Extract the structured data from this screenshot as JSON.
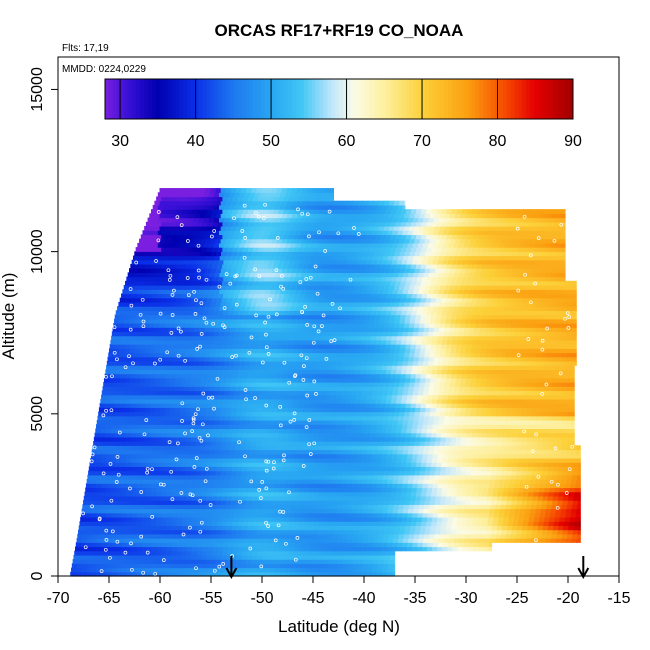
{
  "chart_data": {
    "type": "heatmap",
    "title": "ORCAS RF17+RF19 CO_NOAA",
    "subtitle_lines": [
      "Flts: 17,19",
      "MMDD: 0224,0229"
    ],
    "xlabel": "Latitude (deg N)",
    "ylabel": "Altitude (m)",
    "xlim": [
      -70,
      -15
    ],
    "ylim": [
      0,
      16000
    ],
    "x_ticks": [
      -70,
      -65,
      -60,
      -55,
      -50,
      -45,
      -40,
      -35,
      -30,
      -25,
      -20,
      -15
    ],
    "y_ticks": [
      0,
      5000,
      10000,
      15000
    ],
    "colorbar": {
      "min": 28,
      "max": 90,
      "ticks": [
        30,
        40,
        50,
        60,
        70,
        80,
        90
      ],
      "stops": [
        {
          "v": 28,
          "c": "#7a1fe0"
        },
        {
          "v": 31,
          "c": "#3a10d8"
        },
        {
          "v": 35,
          "c": "#0000b0"
        },
        {
          "v": 40,
          "c": "#0a2fe8"
        },
        {
          "v": 45,
          "c": "#1e78f0"
        },
        {
          "v": 50,
          "c": "#28a6f2"
        },
        {
          "v": 54,
          "c": "#3fc6f5"
        },
        {
          "v": 58,
          "c": "#bfe6fb"
        },
        {
          "v": 61,
          "c": "#fbfbe6"
        },
        {
          "v": 65,
          "c": "#fdf0a0"
        },
        {
          "v": 70,
          "c": "#fcd13a"
        },
        {
          "v": 76,
          "c": "#fba010"
        },
        {
          "v": 81,
          "c": "#f64a00"
        },
        {
          "v": 85,
          "c": "#e40000"
        },
        {
          "v": 90,
          "c": "#a00000"
        }
      ]
    },
    "arrows_lat": [
      -53,
      -18.5
    ],
    "marker_color": "#ffffff"
  }
}
